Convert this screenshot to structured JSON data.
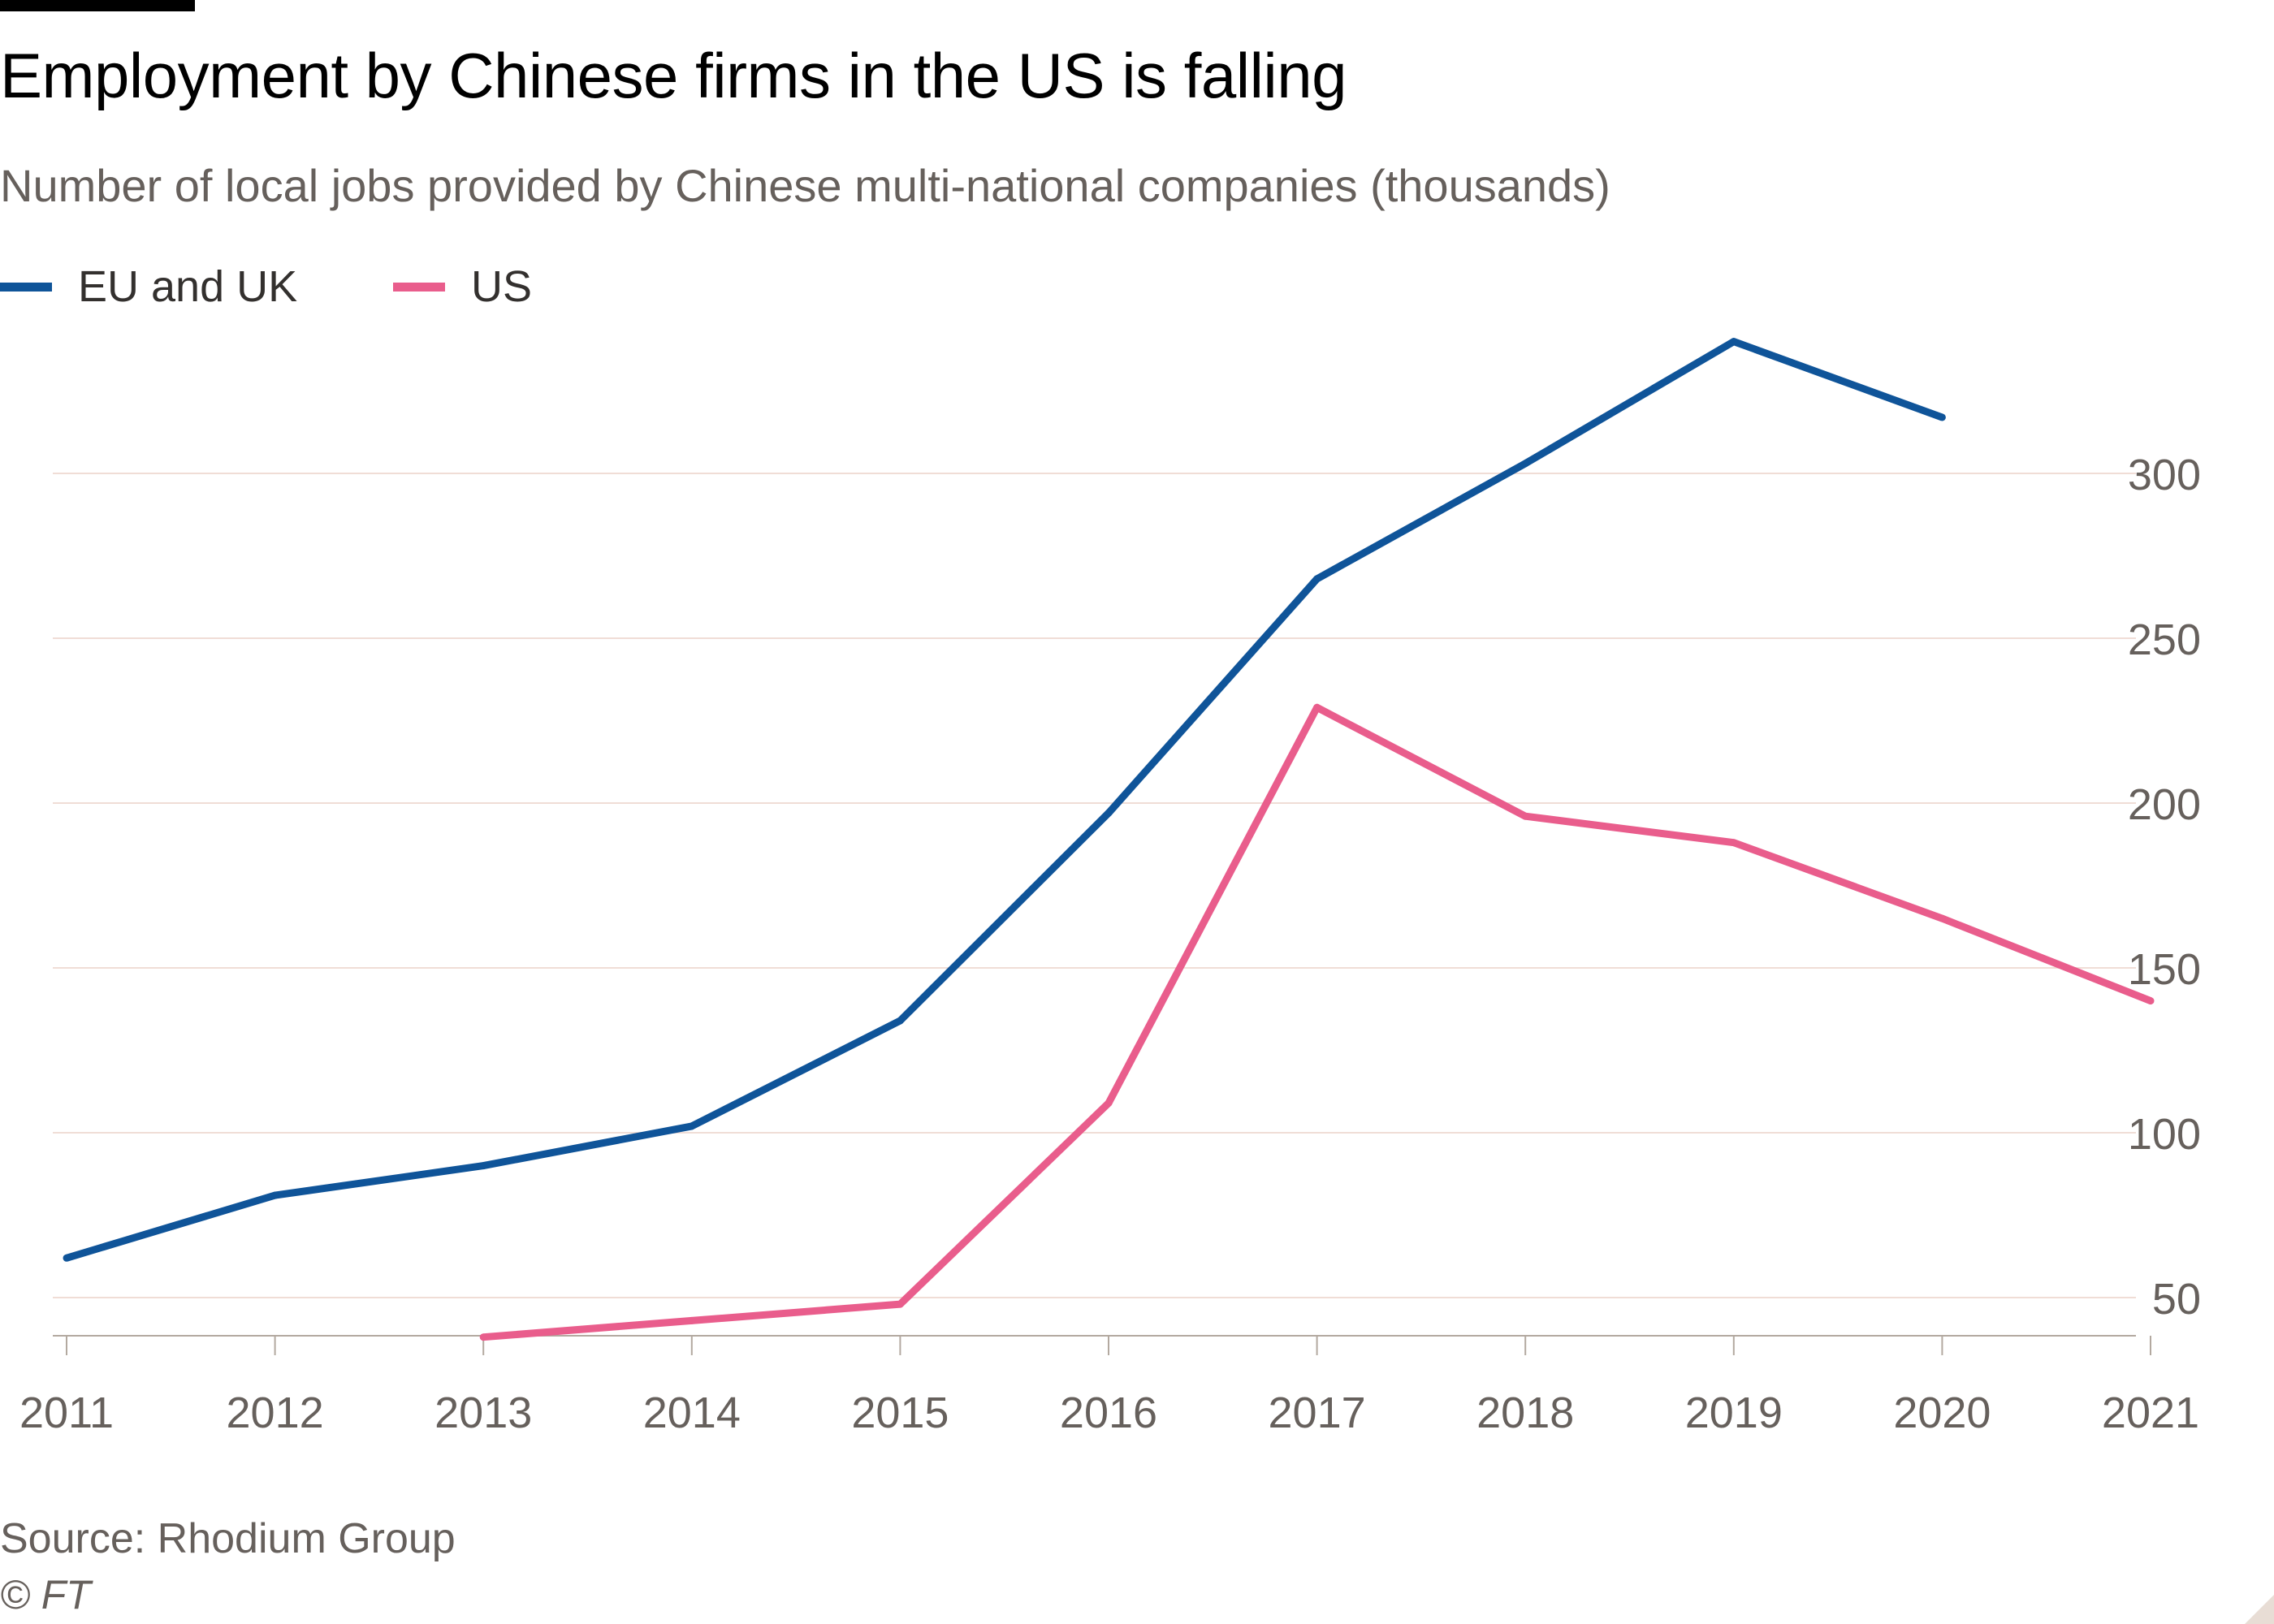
{
  "title": "Employment by Chinese firms in the US is falling",
  "subtitle": "Number of local jobs provided by Chinese multi-national companies (thousands)",
  "source": "Source: Rhodium Group",
  "copyright": "© FT",
  "colors": {
    "eu_uk": "#0f5499",
    "us": "#e95d8c",
    "grid": "#f0ddd6",
    "axis": "#b3a9a0",
    "tick_text": "#66605c"
  },
  "legend": [
    {
      "label": "EU and UK",
      "color": "#0f5499"
    },
    {
      "label": "US",
      "color": "#e95d8c"
    }
  ],
  "chart_data": {
    "type": "line",
    "title": "Employment by Chinese firms in the US is falling",
    "subtitle": "Number of local jobs provided by Chinese multi-national companies (thousands)",
    "xlabel": "",
    "ylabel": "",
    "x": [
      2011,
      2012,
      2013,
      2014,
      2015,
      2016,
      2017,
      2018,
      2019,
      2020,
      2021
    ],
    "x_tick_labels": [
      "2011",
      "2012",
      "2013",
      "2014",
      "2015",
      "2016",
      "2017",
      "2018",
      "2019",
      "2020",
      "2021"
    ],
    "y_ticks": [
      50,
      100,
      150,
      200,
      250,
      300
    ],
    "y_tick_labels": [
      "50",
      "100",
      "150",
      "200",
      "250",
      "300"
    ],
    "ylim": [
      38,
      345
    ],
    "y_axis_side": "right",
    "grid": true,
    "legend_position": "top-left",
    "series": [
      {
        "name": "EU and UK",
        "color": "#0f5499",
        "values": [
          62,
          81,
          90,
          102,
          134,
          197,
          268,
          303,
          340,
          317,
          null
        ]
      },
      {
        "name": "US",
        "color": "#e95d8c",
        "values": [
          null,
          null,
          38,
          43,
          48,
          109,
          229,
          196,
          188,
          165,
          140
        ]
      }
    ]
  }
}
